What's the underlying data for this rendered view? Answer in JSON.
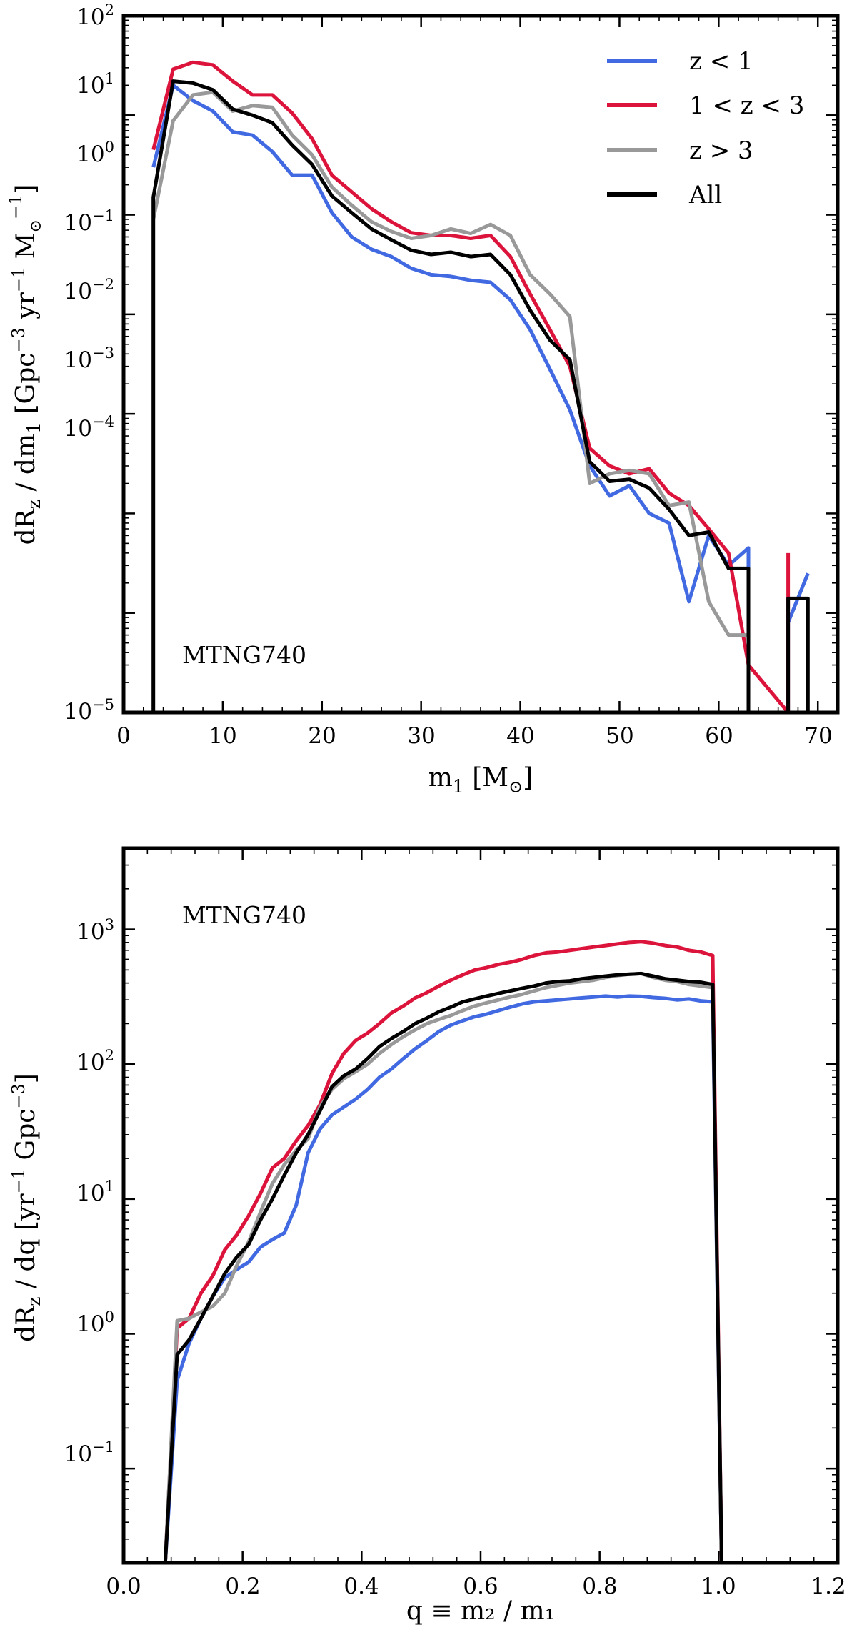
{
  "colors": {
    "z_lt_1": "#4169e1",
    "z_1_3": "#dc143c",
    "z_gt_3": "#999999",
    "all": "#000000"
  },
  "top": {
    "annotation": "MTNG740",
    "xlabel_main": "m",
    "xlabel_sub": "1",
    "xlabel_unit_open": " [M",
    "xlabel_unit_close": "]",
    "ylabel": "dR_z / dm_1 [Gpc^-3 yr^-1 M_sun^-1]",
    "xticks": [
      "0",
      "10",
      "20",
      "30",
      "40",
      "50",
      "60",
      "70"
    ],
    "yticks": [
      {
        "base": "10",
        "exp": "2"
      },
      {
        "base": "10",
        "exp": "1"
      },
      {
        "base": "10",
        "exp": "0"
      },
      {
        "base": "10",
        "exp": "−1"
      },
      {
        "base": "10",
        "exp": "−2"
      },
      {
        "base": "10",
        "exp": "−3"
      },
      {
        "base": "10",
        "exp": "−4"
      },
      {
        "base": "10",
        "exp": "−5"
      }
    ]
  },
  "bottom": {
    "annotation": "MTNG740",
    "xlabel": "q ≡ m₂ / m₁",
    "ylabel": "dR_z / dq [yr^-1 Gpc^-3]",
    "xticks": [
      "0.0",
      "0.2",
      "0.4",
      "0.6",
      "0.8",
      "1.0",
      "1.2"
    ],
    "yticks": [
      {
        "base": "10",
        "exp": "3"
      },
      {
        "base": "10",
        "exp": "2"
      },
      {
        "base": "10",
        "exp": "1"
      },
      {
        "base": "10",
        "exp": "0"
      },
      {
        "base": "10",
        "exp": "−1"
      }
    ]
  },
  "legend": [
    "z < 1",
    "1 < z < 3",
    "z > 3",
    "All"
  ],
  "chart_data": [
    {
      "type": "line",
      "title": "",
      "annotation": "MTNG740",
      "xlabel": "m1 [Msun]",
      "ylabel": "dRz / dm1 [Gpc^-3 yr^-1 Msun^-1]",
      "xlim": [
        0,
        72
      ],
      "ylim": [
        1e-05,
        100
      ],
      "yscale": "log",
      "xticks": [
        0,
        10,
        20,
        30,
        40,
        50,
        60,
        70
      ],
      "grid": false,
      "legend_position": "top-right",
      "series": [
        {
          "name": "z < 1",
          "color_key": "z_lt_1",
          "x": [
            3,
            5,
            7,
            9,
            11,
            13,
            15,
            17,
            19,
            21,
            23,
            25,
            27,
            29,
            31,
            33,
            35,
            37,
            39,
            41,
            43,
            45,
            47,
            49,
            51,
            53,
            55,
            57,
            59,
            61,
            63,
            63,
            67,
            67,
            69
          ],
          "y": [
            3,
            20,
            14,
            11,
            6.8,
            6.3,
            4.3,
            2.5,
            2.5,
            1.05,
            0.6,
            0.45,
            0.38,
            0.29,
            0.25,
            0.24,
            0.22,
            0.21,
            0.14,
            0.07,
            0.028,
            0.011,
            0.003,
            0.0015,
            0.0019,
            0.001,
            0.0008,
            0.00013,
            0.0006,
            0.0003,
            0.00045,
            1e-05,
            1e-05,
            8e-05,
            0.00025
          ]
        },
        {
          "name": "1 < z < 3",
          "color_key": "z_1_3",
          "x": [
            3,
            5,
            7,
            9,
            11,
            13,
            15,
            17,
            19,
            21,
            23,
            25,
            27,
            29,
            31,
            33,
            35,
            37,
            39,
            41,
            43,
            45,
            47,
            49,
            51,
            53,
            55,
            57,
            59,
            61,
            63,
            67,
            67
          ],
          "y": [
            4.5,
            29,
            34,
            32,
            22,
            16,
            16,
            10.5,
            5.8,
            2.5,
            1.7,
            1.15,
            0.85,
            0.66,
            0.62,
            0.62,
            0.58,
            0.62,
            0.38,
            0.16,
            0.07,
            0.03,
            0.0045,
            0.003,
            0.0025,
            0.0028,
            0.0016,
            0.0012,
            0.0007,
            0.0004,
            3e-05,
            1e-05,
            0.0004
          ]
        },
        {
          "name": "z > 3",
          "color_key": "z_gt_3",
          "x": [
            3,
            5,
            7,
            9,
            11,
            13,
            15,
            17,
            19,
            21,
            23,
            25,
            27,
            29,
            31,
            33,
            35,
            37,
            39,
            41,
            43,
            45,
            47,
            49,
            51,
            53,
            55,
            57,
            59,
            61,
            63
          ],
          "y": [
            0.9,
            8.8,
            16,
            17,
            11,
            12.5,
            12,
            6.3,
            4,
            1.9,
            1.25,
            0.85,
            0.68,
            0.58,
            0.62,
            0.72,
            0.65,
            0.8,
            0.62,
            0.25,
            0.16,
            0.095,
            0.002,
            0.0025,
            0.0027,
            0.0025,
            0.0012,
            0.0013,
            0.00013,
            6e-05,
            6e-05
          ]
        },
        {
          "name": "All",
          "color_key": "all",
          "x": [
            3,
            3,
            5,
            7,
            9,
            11,
            13,
            15,
            17,
            19,
            21,
            23,
            25,
            27,
            29,
            31,
            33,
            35,
            37,
            39,
            41,
            43,
            45,
            47,
            49,
            51,
            53,
            55,
            57,
            59,
            61,
            63,
            63,
            67,
            67,
            69,
            69
          ],
          "y": [
            1e-05,
            1.5,
            22,
            21,
            18,
            11.5,
            10,
            8.4,
            5,
            3.2,
            1.55,
            1.05,
            0.72,
            0.56,
            0.44,
            0.4,
            0.42,
            0.38,
            0.4,
            0.25,
            0.11,
            0.055,
            0.035,
            0.0033,
            0.0021,
            0.0022,
            0.0018,
            0.0011,
            0.0006,
            0.00065,
            0.00028,
            0.00028,
            1e-05,
            1e-05,
            0.00014,
            0.00014,
            1e-05
          ]
        }
      ]
    },
    {
      "type": "line",
      "title": "",
      "annotation": "MTNG740",
      "xlabel": "q = m2 / m1",
      "ylabel": "dRz / dq [yr^-1 Gpc^-3]",
      "xlim": [
        0,
        1.2
      ],
      "ylim": [
        0.02,
        4000
      ],
      "yscale": "log",
      "xticks": [
        0.0,
        0.2,
        0.4,
        0.6,
        0.8,
        1.0,
        1.2
      ],
      "grid": false,
      "legend": "none",
      "series": [
        {
          "name": "z < 1",
          "color_key": "z_lt_1",
          "x": [
            0.07,
            0.09,
            0.11,
            0.13,
            0.15,
            0.17,
            0.19,
            0.21,
            0.23,
            0.25,
            0.27,
            0.29,
            0.31,
            0.33,
            0.35,
            0.37,
            0.39,
            0.41,
            0.43,
            0.45,
            0.47,
            0.49,
            0.51,
            0.53,
            0.55,
            0.57,
            0.59,
            0.61,
            0.63,
            0.65,
            0.67,
            0.69,
            0.71,
            0.73,
            0.75,
            0.77,
            0.79,
            0.81,
            0.83,
            0.85,
            0.87,
            0.89,
            0.91,
            0.93,
            0.95,
            0.97,
            0.99,
            1.005
          ],
          "y": [
            0.02,
            0.45,
            0.85,
            1.3,
            1.9,
            2.6,
            3.0,
            3.4,
            4.4,
            5.0,
            5.6,
            9,
            22,
            33,
            42,
            48,
            55,
            65,
            80,
            92,
            110,
            130,
            150,
            175,
            195,
            210,
            225,
            235,
            250,
            265,
            280,
            290,
            295,
            300,
            305,
            310,
            315,
            320,
            315,
            320,
            318,
            312,
            308,
            300,
            305,
            295,
            290,
            0.02
          ]
        },
        {
          "name": "1 < z < 3",
          "color_key": "z_1_3",
          "x": [
            0.07,
            0.09,
            0.11,
            0.13,
            0.15,
            0.17,
            0.19,
            0.21,
            0.23,
            0.25,
            0.27,
            0.29,
            0.31,
            0.33,
            0.35,
            0.37,
            0.39,
            0.41,
            0.43,
            0.45,
            0.47,
            0.49,
            0.51,
            0.53,
            0.55,
            0.57,
            0.59,
            0.61,
            0.63,
            0.65,
            0.67,
            0.69,
            0.71,
            0.73,
            0.75,
            0.77,
            0.79,
            0.81,
            0.83,
            0.85,
            0.87,
            0.89,
            0.91,
            0.93,
            0.95,
            0.97,
            0.99,
            1.005
          ],
          "y": [
            0.02,
            1.1,
            1.3,
            2.0,
            2.7,
            4.2,
            5.4,
            7.5,
            11,
            17,
            20,
            27,
            35,
            50,
            85,
            120,
            150,
            170,
            200,
            240,
            270,
            310,
            340,
            380,
            420,
            460,
            500,
            520,
            550,
            570,
            600,
            640,
            670,
            680,
            700,
            720,
            740,
            760,
            780,
            800,
            810,
            790,
            760,
            740,
            700,
            680,
            640,
            0.02
          ]
        },
        {
          "name": "z > 3",
          "color_key": "z_gt_3",
          "x": [
            0.07,
            0.09,
            0.11,
            0.13,
            0.15,
            0.17,
            0.19,
            0.21,
            0.23,
            0.25,
            0.27,
            0.29,
            0.31,
            0.33,
            0.35,
            0.37,
            0.39,
            0.41,
            0.43,
            0.45,
            0.47,
            0.49,
            0.51,
            0.53,
            0.55,
            0.57,
            0.59,
            0.61,
            0.63,
            0.65,
            0.67,
            0.69,
            0.71,
            0.73,
            0.75,
            0.77,
            0.79,
            0.81,
            0.83,
            0.85,
            0.87,
            0.89,
            0.91,
            0.93,
            0.95,
            0.97,
            0.99,
            1.005
          ],
          "y": [
            0.02,
            1.25,
            1.3,
            1.45,
            1.6,
            2.0,
            3.2,
            4.8,
            8,
            13,
            18,
            23,
            28,
            48,
            65,
            78,
            88,
            100,
            120,
            140,
            160,
            180,
            200,
            215,
            230,
            250,
            270,
            285,
            300,
            315,
            330,
            350,
            370,
            385,
            400,
            410,
            420,
            440,
            455,
            465,
            470,
            440,
            420,
            410,
            390,
            380,
            370,
            0.02
          ]
        },
        {
          "name": "All",
          "color_key": "all",
          "x": [
            0.07,
            0.09,
            0.11,
            0.13,
            0.15,
            0.17,
            0.19,
            0.21,
            0.23,
            0.25,
            0.27,
            0.29,
            0.31,
            0.33,
            0.35,
            0.37,
            0.39,
            0.41,
            0.43,
            0.45,
            0.47,
            0.49,
            0.51,
            0.53,
            0.55,
            0.57,
            0.59,
            0.61,
            0.63,
            0.65,
            0.67,
            0.69,
            0.71,
            0.73,
            0.75,
            0.77,
            0.79,
            0.81,
            0.83,
            0.85,
            0.87,
            0.89,
            0.91,
            0.93,
            0.95,
            0.97,
            0.99,
            1.005
          ],
          "y": [
            0.02,
            0.7,
            0.9,
            1.3,
            1.9,
            2.8,
            3.7,
            4.6,
            7,
            10,
            15,
            22,
            30,
            45,
            68,
            82,
            92,
            110,
            135,
            155,
            175,
            200,
            220,
            245,
            265,
            290,
            305,
            320,
            335,
            350,
            365,
            380,
            400,
            410,
            415,
            430,
            440,
            450,
            460,
            465,
            470,
            450,
            430,
            420,
            410,
            405,
            390,
            0.02
          ]
        }
      ]
    }
  ]
}
